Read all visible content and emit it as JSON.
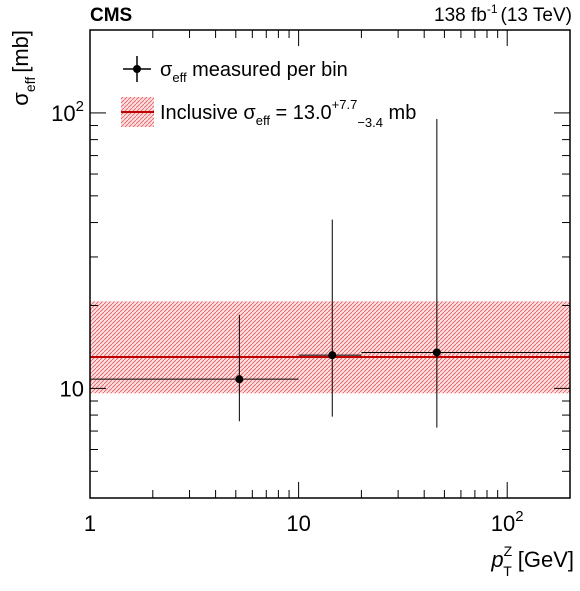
{
  "header": {
    "experiment": "CMS",
    "lumi_value": "138 fb",
    "lumi_exp": "-1",
    "energy": "(13 TeV)"
  },
  "chart_data": {
    "type": "scatter",
    "x_scale": "log",
    "y_scale": "log",
    "xlim": [
      1,
      200
    ],
    "ylim": [
      4,
      200
    ],
    "xlabel": {
      "main": "p",
      "sup": "Z",
      "sub": "T",
      "unit": "[GeV]"
    },
    "ylabel": {
      "main": "σ",
      "sub": "eff",
      "unit": "[mb]"
    },
    "x_tick_labels": [
      {
        "value": 1,
        "text": "1"
      },
      {
        "value": 10,
        "text": "10"
      },
      {
        "value": 100,
        "base": "10",
        "exp": "2"
      }
    ],
    "y_tick_labels": [
      {
        "value": 10,
        "text": "10"
      },
      {
        "value": 100,
        "base": "10",
        "exp": "2"
      }
    ],
    "series": [
      {
        "name": "σ_eff measured per bin",
        "points": [
          {
            "x": 5.2,
            "xlo": 1,
            "xhi": 10,
            "y": 10.8,
            "ylo": 7.6,
            "yhi": 18.5
          },
          {
            "x": 14.5,
            "xlo": 10,
            "xhi": 20,
            "y": 13.2,
            "ylo": 7.9,
            "yhi": 41
          },
          {
            "x": 46,
            "xlo": 20,
            "xhi": 200,
            "y": 13.5,
            "ylo": 7.2,
            "yhi": 95
          }
        ]
      }
    ],
    "inclusive": {
      "value": 13.0,
      "err_up": 7.7,
      "err_down": 3.4
    },
    "colors": {
      "band": "#e8595c",
      "line": "#c00000",
      "points": "#000000"
    },
    "legend": {
      "position": "top-left",
      "entries": [
        {
          "symbol": "point",
          "label_main": "σ",
          "label_sub": "eff",
          "label_rest": " measured per bin"
        },
        {
          "symbol": "band",
          "label_prefix": "Inclusive σ",
          "label_sub": "eff",
          "label_eq": " = 13.0",
          "label_up": "+7.7",
          "label_down": "−3.4",
          "label_unit": " mb"
        }
      ]
    }
  }
}
